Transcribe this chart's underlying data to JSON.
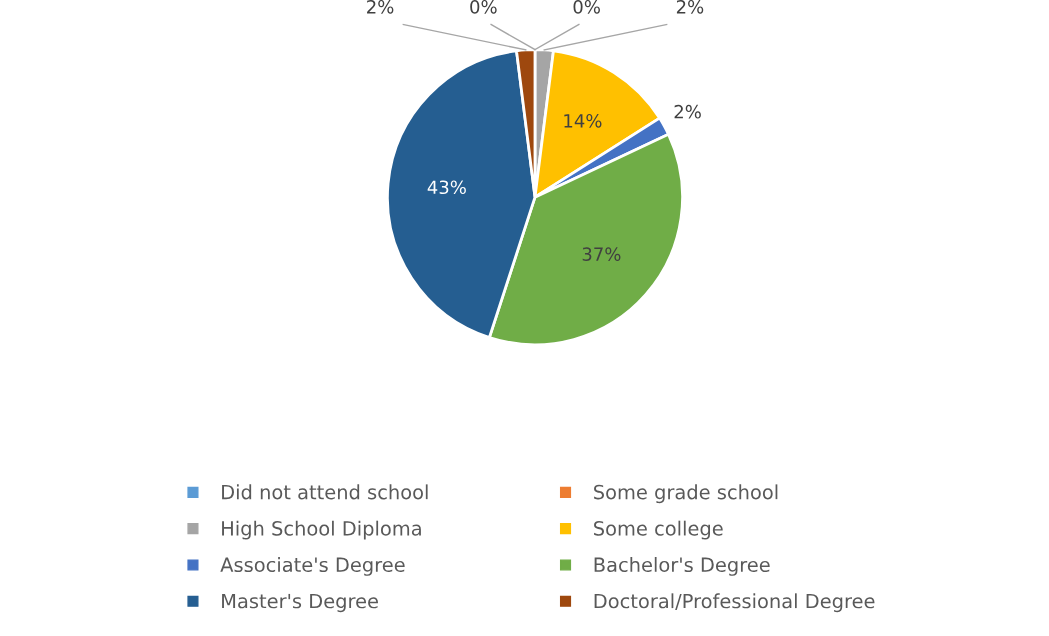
{
  "chart_data": {
    "type": "pie",
    "categories": [
      "Did not attend school",
      "Some grade school",
      "High School Diploma",
      "Some college",
      "Associate's Degree",
      "Bachelor's Degree",
      "Master's Degree",
      "Doctoral/Professional Degree"
    ],
    "values": [
      0,
      0,
      2,
      14,
      2,
      37,
      43,
      2
    ],
    "colors": [
      "#5b9bd5",
      "#ed7d31",
      "#a5a5a5",
      "#ffc000",
      "#4472c4",
      "#70ad47",
      "#255e91",
      "#9e480e"
    ],
    "value_labels": [
      "0%",
      "0%",
      "2%",
      "14%",
      "2%",
      "37%",
      "43%",
      "2%"
    ],
    "legend": "bottom"
  }
}
